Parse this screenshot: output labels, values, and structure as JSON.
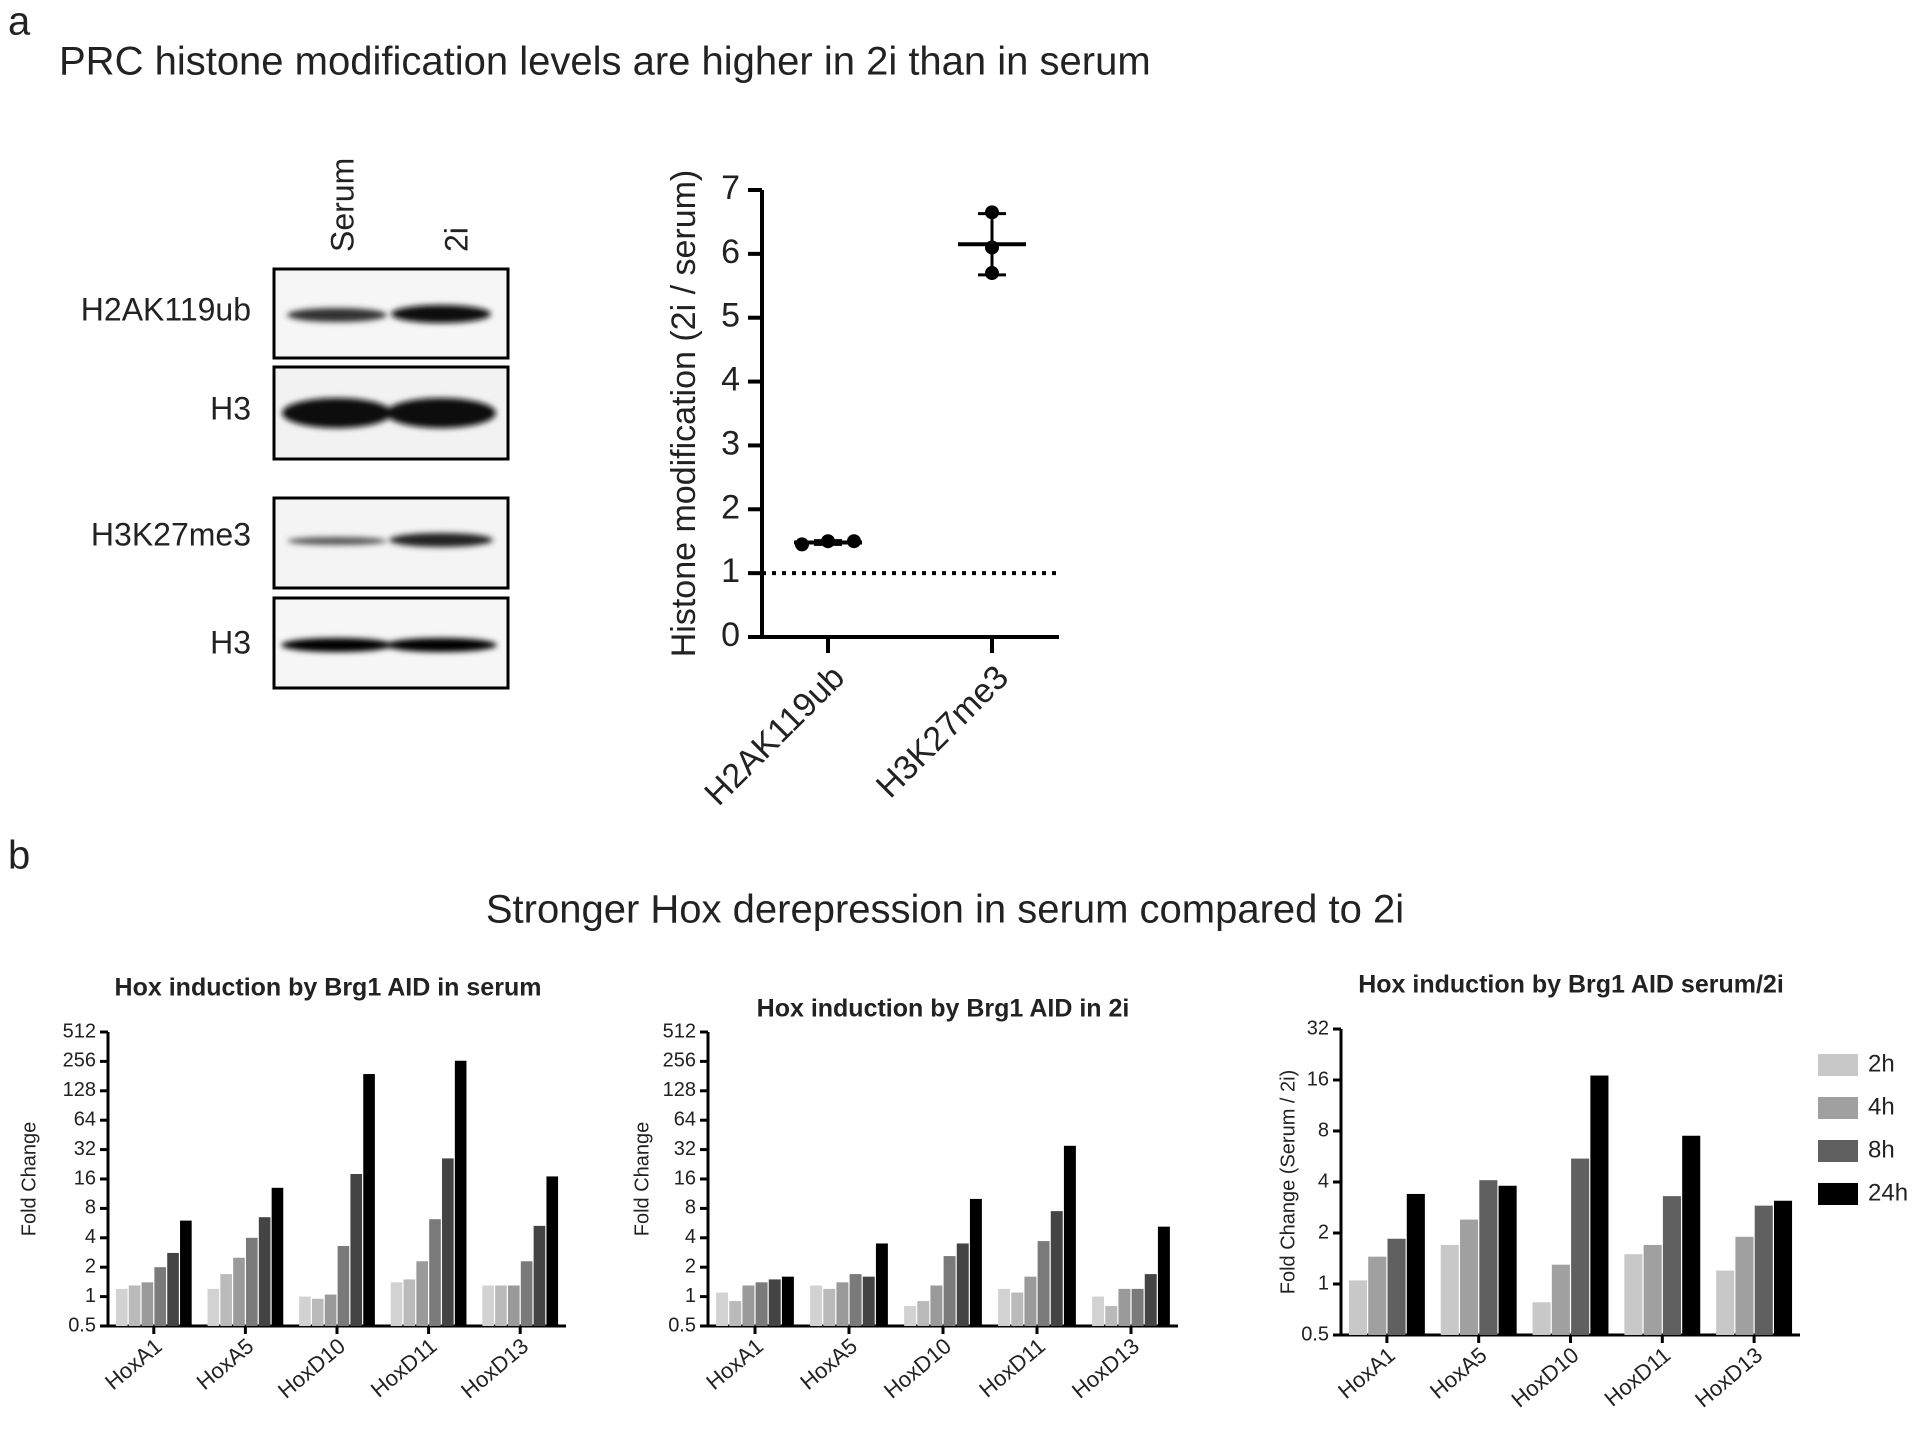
{
  "panels": [
    {
      "label": "a",
      "title": "PRC histone modification levels are higher in 2i than in serum"
    },
    {
      "label": "b",
      "title": "Stronger Hox derepression in serum compared to 2i"
    }
  ],
  "blot": {
    "lanes": [
      "Serum",
      "2i"
    ],
    "rows": [
      "H2AK119ub",
      "H3",
      "H3K27me3",
      "H3"
    ]
  },
  "chart_data": [
    {
      "type": "dot",
      "ylabel": "Histone modification (2i / serum)",
      "categories": [
        "H2AK119ub",
        "H3K27me3"
      ],
      "points": [
        [
          1.45,
          1.5,
          1.5
        ],
        [
          6.65,
          6.1,
          5.7
        ]
      ],
      "means": [
        1.48,
        6.15
      ],
      "errors": [
        0.03,
        0.48
      ],
      "reference_line": 1,
      "color": "#000000",
      "ylim": [
        0,
        7
      ],
      "yticks": [
        0,
        1,
        2,
        3,
        4,
        5,
        6,
        7
      ]
    },
    {
      "type": "bar",
      "title": "Hox induction by Brg1 AID in serum",
      "ylabel": "Fold Change",
      "log_base": 2,
      "ylim": [
        0.5,
        512
      ],
      "yticks": [
        0.5,
        1,
        2,
        4,
        8,
        16,
        32,
        64,
        128,
        256,
        512
      ],
      "categories": [
        "HoxA1",
        "HoxA5",
        "HoxD10",
        "HoxD11",
        "HoxD13"
      ],
      "series": [
        {
          "color": "#d2d2d2",
          "values": [
            1.2,
            1.2,
            1,
            1.4,
            1.3
          ]
        },
        {
          "color": "#bababa",
          "values": [
            1.3,
            1.7,
            0.95,
            1.5,
            1.3
          ]
        },
        {
          "color": "#9a9a9a",
          "values": [
            1.4,
            2.5,
            1.05,
            2.3,
            1.3
          ]
        },
        {
          "color": "#7a7a7a",
          "values": [
            2,
            4,
            3.3,
            6.2,
            2.3
          ]
        },
        {
          "color": "#444444",
          "values": [
            2.8,
            6.5,
            18,
            26,
            5.3
          ]
        },
        {
          "color": "#000000",
          "values": [
            6,
            13,
            190,
            260,
            17
          ]
        }
      ]
    },
    {
      "type": "bar",
      "title": "Hox induction by Brg1 AID in 2i",
      "ylabel": "Fold Change",
      "log_base": 2,
      "ylim": [
        0.5,
        512
      ],
      "yticks": [
        0.5,
        1,
        2,
        4,
        8,
        16,
        32,
        64,
        128,
        256,
        512
      ],
      "categories": [
        "HoxA1",
        "HoxA5",
        "HoxD10",
        "HoxD11",
        "HoxD13"
      ],
      "series": [
        {
          "color": "#d2d2d2",
          "values": [
            1.1,
            1.3,
            0.8,
            1.2,
            1
          ]
        },
        {
          "color": "#bababa",
          "values": [
            0.9,
            1.2,
            0.9,
            1.1,
            0.8
          ]
        },
        {
          "color": "#9a9a9a",
          "values": [
            1.3,
            1.4,
            1.3,
            1.6,
            1.2
          ]
        },
        {
          "color": "#7a7a7a",
          "values": [
            1.4,
            1.7,
            2.6,
            3.7,
            1.2
          ]
        },
        {
          "color": "#444444",
          "values": [
            1.5,
            1.6,
            3.5,
            7.5,
            1.7
          ]
        },
        {
          "color": "#000000",
          "values": [
            1.6,
            3.5,
            10,
            35,
            5.2
          ]
        }
      ]
    },
    {
      "type": "bar",
      "title": "Hox induction by Brg1 AID serum/2i",
      "ylabel": "Fold Change (Serum / 2i)",
      "log_base": 2,
      "ylim": [
        0.5,
        32
      ],
      "yticks": [
        0.5,
        1,
        2,
        4,
        8,
        16,
        32
      ],
      "legend": "right",
      "categories": [
        "HoxA1",
        "HoxA5",
        "HoxD10",
        "HoxD11",
        "HoxD13"
      ],
      "series": [
        {
          "name": "2h",
          "color": "#c8c8c8",
          "values": [
            1.05,
            1.7,
            0.78,
            1.5,
            1.2
          ]
        },
        {
          "name": "4h",
          "color": "#a0a0a0",
          "values": [
            1.45,
            2.4,
            1.3,
            1.7,
            1.9
          ]
        },
        {
          "name": "8h",
          "color": "#606060",
          "values": [
            1.85,
            4.1,
            5.5,
            3.3,
            2.9
          ]
        },
        {
          "name": "24h",
          "color": "#000000",
          "values": [
            3.4,
            3.8,
            17,
            7.5,
            3.1
          ]
        }
      ]
    }
  ]
}
